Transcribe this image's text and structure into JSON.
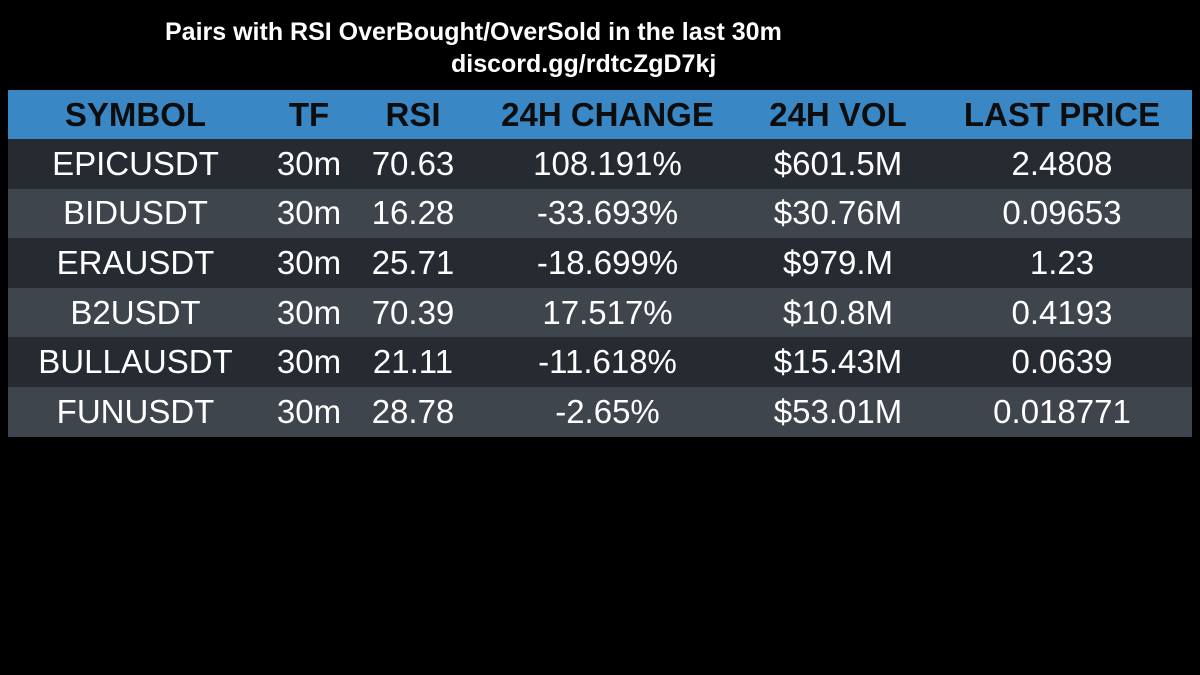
{
  "header": {
    "title": "Pairs with RSI OverBought/OverSold in the last 30m",
    "subtitle": "discord.gg/rdtcZgD7kj"
  },
  "table": {
    "columns": [
      "SYMBOL",
      "TF",
      "RSI",
      "24H CHANGE",
      "24H VOL",
      "LAST PRICE"
    ],
    "rows": [
      [
        "EPICUSDT",
        "30m",
        "70.63",
        "108.191%",
        "$601.5M",
        "2.4808"
      ],
      [
        "BIDUSDT",
        "30m",
        "16.28",
        "-33.693%",
        "$30.76M",
        "0.09653"
      ],
      [
        "ERAUSDT",
        "30m",
        "25.71",
        "-18.699%",
        "$979.M",
        "1.23"
      ],
      [
        "B2USDT",
        "30m",
        "70.39",
        "17.517%",
        "$10.8M",
        "0.4193"
      ],
      [
        "BULLAUSDT",
        "30m",
        "21.11",
        "-11.618%",
        "$15.43M",
        "0.0639"
      ],
      [
        "FUNUSDT",
        "30m",
        "28.78",
        "-2.65%",
        "$53.01M",
        "0.018771"
      ]
    ]
  },
  "colors": {
    "background": "#000000",
    "header_row": "#3a87c6",
    "row_dark": "#262b31",
    "row_light": "#3f454c",
    "text": "#ffffff",
    "header_text": "#0d0d0d"
  }
}
